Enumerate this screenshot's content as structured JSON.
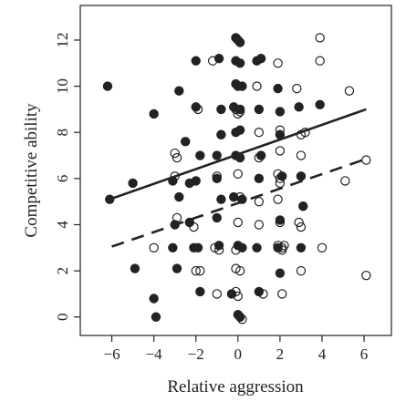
{
  "chart_data": {
    "type": "scatter",
    "title": "",
    "xlabel": "Relative aggression",
    "ylabel": "Competitive ability",
    "xlim": [
      -7.5,
      7.3
    ],
    "ylim": [
      -0.8,
      13.5
    ],
    "xticks": [
      -6,
      -4,
      -2,
      0,
      2,
      4,
      6
    ],
    "xtick_labels": [
      "−6",
      "−4",
      "−2",
      "0",
      "2",
      "4",
      "6"
    ],
    "yticks": [
      0,
      2,
      4,
      6,
      8,
      10,
      12
    ],
    "ytick_labels": [
      "0",
      "2",
      "4",
      "6",
      "8",
      "10",
      "12"
    ],
    "grid": false,
    "legend": "none",
    "series": [
      {
        "marker": "filled-circle",
        "color": "#222222",
        "points": [
          [
            -6.2,
            10.0
          ],
          [
            -6.1,
            5.1
          ],
          [
            -5.0,
            5.8
          ],
          [
            -4.9,
            2.1
          ],
          [
            -4.0,
            8.8
          ],
          [
            -4.0,
            0.8
          ],
          [
            -3.9,
            0.0
          ],
          [
            -3.1,
            5.9
          ],
          [
            -3.1,
            3.0
          ],
          [
            -3.0,
            4.0
          ],
          [
            -2.9,
            2.1
          ],
          [
            -2.8,
            9.8
          ],
          [
            -2.8,
            5.2
          ],
          [
            -2.5,
            7.6
          ],
          [
            -2.3,
            5.8
          ],
          [
            -2.3,
            4.1
          ],
          [
            -2.1,
            3.0
          ],
          [
            -2.0,
            11.1
          ],
          [
            -2.0,
            9.1
          ],
          [
            -2.0,
            5.9
          ],
          [
            -1.9,
            3.0
          ],
          [
            -1.8,
            7.0
          ],
          [
            -1.8,
            1.1
          ],
          [
            -1.0,
            7.0
          ],
          [
            -1.0,
            6.0
          ],
          [
            -1.0,
            4.3
          ],
          [
            -0.9,
            11.2
          ],
          [
            -0.9,
            3.1
          ],
          [
            -0.8,
            9.0
          ],
          [
            -0.8,
            7.9
          ],
          [
            -0.8,
            5.1
          ],
          [
            -0.3,
            1.0
          ],
          [
            -0.2,
            9.1
          ],
          [
            -0.1,
            12.1
          ],
          [
            0.0,
            12.0
          ],
          [
            0.1,
            11.9
          ],
          [
            -0.1,
            11.1
          ],
          [
            0.1,
            11.0
          ],
          [
            -0.1,
            10.1
          ],
          [
            0.0,
            10.0
          ],
          [
            0.2,
            10.0
          ],
          [
            0.1,
            9.0
          ],
          [
            -0.1,
            8.0
          ],
          [
            0.1,
            8.1
          ],
          [
            -0.1,
            7.0
          ],
          [
            0.1,
            6.9
          ],
          [
            -0.2,
            5.2
          ],
          [
            0.2,
            5.1
          ],
          [
            0.0,
            3.1
          ],
          [
            0.2,
            3.0
          ],
          [
            0.0,
            0.1
          ],
          [
            0.1,
            0.0
          ],
          [
            0.9,
            11.1
          ],
          [
            1.1,
            11.2
          ],
          [
            1.0,
            9.0
          ],
          [
            1.1,
            7.0
          ],
          [
            1.0,
            6.0
          ],
          [
            0.9,
            3.0
          ],
          [
            1.0,
            1.1
          ],
          [
            1.9,
            9.9
          ],
          [
            2.0,
            8.9
          ],
          [
            2.0,
            7.9
          ],
          [
            2.1,
            6.1
          ],
          [
            2.0,
            4.2
          ],
          [
            1.9,
            3.0
          ],
          [
            2.0,
            1.9
          ],
          [
            2.9,
            9.1
          ],
          [
            3.0,
            6.1
          ],
          [
            3.1,
            4.8
          ],
          [
            3.0,
            3.0
          ],
          [
            3.9,
            9.2
          ]
        ]
      },
      {
        "marker": "open-circle",
        "color": "#222222",
        "points": [
          [
            -4.0,
            3.0
          ],
          [
            -3.0,
            7.1
          ],
          [
            -2.9,
            6.9
          ],
          [
            -3.0,
            6.1
          ],
          [
            -2.9,
            4.3
          ],
          [
            -2.1,
            3.9
          ],
          [
            -2.0,
            2.0
          ],
          [
            -1.8,
            2.0
          ],
          [
            -1.9,
            9.0
          ],
          [
            -1.2,
            11.1
          ],
          [
            -1.0,
            6.1
          ],
          [
            -1.1,
            3.0
          ],
          [
            -0.9,
            2.9
          ],
          [
            -1.0,
            1.0
          ],
          [
            -0.1,
            9.0
          ],
          [
            0.1,
            8.9
          ],
          [
            0.0,
            8.8
          ],
          [
            0.0,
            6.2
          ],
          [
            0.1,
            5.2
          ],
          [
            0.0,
            4.1
          ],
          [
            -0.1,
            2.9
          ],
          [
            -0.1,
            2.1
          ],
          [
            0.1,
            2.0
          ],
          [
            -0.1,
            1.1
          ],
          [
            0.0,
            0.9
          ],
          [
            0.1,
            0.0
          ],
          [
            0.2,
            -0.1
          ],
          [
            0.9,
            10.0
          ],
          [
            1.0,
            8.0
          ],
          [
            1.0,
            6.9
          ],
          [
            1.0,
            5.0
          ],
          [
            1.0,
            4.0
          ],
          [
            1.2,
            1.0
          ],
          [
            1.9,
            11.0
          ],
          [
            2.0,
            8.1
          ],
          [
            2.0,
            7.2
          ],
          [
            1.9,
            6.2
          ],
          [
            2.0,
            6.0
          ],
          [
            1.9,
            5.1
          ],
          [
            2.0,
            5.8
          ],
          [
            2.0,
            4.1
          ],
          [
            1.9,
            3.1
          ],
          [
            2.1,
            3.0
          ],
          [
            2.2,
            3.1
          ],
          [
            2.1,
            2.9
          ],
          [
            2.1,
            1.0
          ],
          [
            2.8,
            9.9
          ],
          [
            3.0,
            7.9
          ],
          [
            3.2,
            8.0
          ],
          [
            3.0,
            7.0
          ],
          [
            2.9,
            4.1
          ],
          [
            3.0,
            3.9
          ],
          [
            3.0,
            2.0
          ],
          [
            3.9,
            12.1
          ],
          [
            3.9,
            11.1
          ],
          [
            4.0,
            3.0
          ],
          [
            5.1,
            5.9
          ],
          [
            5.3,
            9.8
          ],
          [
            6.1,
            6.8
          ],
          [
            6.1,
            1.8
          ]
        ]
      }
    ],
    "lines": [
      {
        "style": "solid",
        "color": "#222222",
        "x": [
          -6.1,
          6.1
        ],
        "y": [
          5.1,
          9.0
        ]
      },
      {
        "style": "dashed",
        "color": "#222222",
        "x": [
          -6.0,
          6.1
        ],
        "y": [
          3.05,
          6.85
        ]
      }
    ]
  }
}
